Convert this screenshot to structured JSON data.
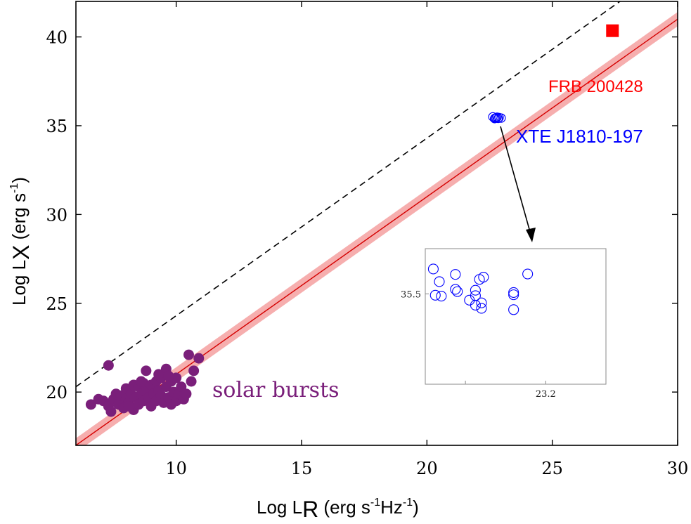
{
  "chart_data": {
    "type": "scatter",
    "xlabel": "Log L",
    "xlabel_sub": "R",
    "xlabel_units": " (erg s",
    "xlabel_exp1": "-1",
    "xlabel_mid": "Hz",
    "xlabel_exp2": "-1",
    "xlabel_end": ")",
    "ylabel": "Log L",
    "ylabel_sub": "X",
    "ylabel_units": " (erg s",
    "ylabel_exp": "-1",
    "ylabel_end": ")",
    "xlim": [
      6,
      30
    ],
    "ylim": [
      17,
      42
    ],
    "x_ticks": [
      10,
      15,
      20,
      25,
      30
    ],
    "x_tick_labels": [
      "10",
      "15",
      "20",
      "25",
      "30"
    ],
    "y_ticks": [
      20,
      25,
      30,
      35,
      40
    ],
    "y_tick_labels": [
      "20",
      "25",
      "30",
      "35",
      "40"
    ],
    "fit_line": {
      "slope": 1.0,
      "intercept": 11.0,
      "band_halfwidth": 0.4,
      "color": "#d40000",
      "band_color": "#f4a0a0"
    },
    "reference_line": {
      "slope": 1.0,
      "intercept": 14.3,
      "style": "dashed",
      "color": "#000000"
    },
    "annotations": {
      "frb": "FRB 200428",
      "xte": "XTE J1810-197",
      "solar": "solar bursts"
    },
    "colors": {
      "solar": "#7a1f7a",
      "xte": "#0000ff",
      "frb": "#ff0000"
    },
    "series": [
      {
        "name": "solar bursts",
        "marker": "filled-circle",
        "points": [
          [
            6.6,
            19.3
          ],
          [
            6.9,
            19.6
          ],
          [
            7.1,
            19.5
          ],
          [
            7.3,
            19.2
          ],
          [
            7.3,
            21.5
          ],
          [
            7.4,
            18.9
          ],
          [
            7.5,
            19.6
          ],
          [
            7.6,
            19.9
          ],
          [
            7.7,
            19.3
          ],
          [
            7.8,
            19.8
          ],
          [
            7.9,
            19.1
          ],
          [
            8.0,
            19.6
          ],
          [
            8.0,
            20.2
          ],
          [
            8.1,
            19.4
          ],
          [
            8.2,
            19.9
          ],
          [
            8.3,
            20.4
          ],
          [
            8.3,
            19.0
          ],
          [
            8.4,
            19.7
          ],
          [
            8.5,
            20.3
          ],
          [
            8.5,
            19.3
          ],
          [
            8.6,
            19.9
          ],
          [
            8.7,
            20.5
          ],
          [
            8.7,
            19.5
          ],
          [
            8.8,
            20.0
          ],
          [
            8.8,
            21.2
          ],
          [
            8.9,
            19.7
          ],
          [
            9.0,
            20.4
          ],
          [
            9.0,
            19.2
          ],
          [
            9.1,
            19.9
          ],
          [
            9.2,
            20.6
          ],
          [
            9.2,
            19.5
          ],
          [
            9.3,
            20.1
          ],
          [
            9.4,
            19.8
          ],
          [
            9.4,
            20.8
          ],
          [
            9.5,
            19.4
          ],
          [
            9.6,
            20.3
          ],
          [
            9.6,
            21.3
          ],
          [
            9.7,
            19.7
          ],
          [
            9.8,
            20.6
          ],
          [
            9.8,
            19.3
          ],
          [
            9.9,
            20.0
          ],
          [
            10.0,
            20.8
          ],
          [
            10.0,
            19.5
          ],
          [
            10.1,
            19.9
          ],
          [
            10.2,
            20.3
          ],
          [
            10.3,
            19.6
          ],
          [
            10.4,
            19.9
          ],
          [
            10.5,
            22.1
          ],
          [
            10.6,
            20.6
          ],
          [
            10.7,
            21.2
          ],
          [
            10.9,
            21.9
          ],
          [
            8.6,
            20.6
          ],
          [
            9.3,
            21.0
          ],
          [
            8.1,
            19.2
          ],
          [
            9.7,
            20.9
          ]
        ]
      },
      {
        "name": "XTE J1810-197",
        "marker": "open-circle",
        "points": [
          [
            22.63,
            35.5
          ],
          [
            22.72,
            35.43
          ],
          [
            22.8,
            35.48
          ],
          [
            22.88,
            35.46
          ],
          [
            22.96,
            35.43
          ],
          [
            22.7,
            35.4
          ],
          [
            22.84,
            35.41
          ],
          [
            22.76,
            35.44
          ]
        ]
      },
      {
        "name": "FRB 200428",
        "marker": "filled-square",
        "points": [
          [
            27.4,
            40.35
          ]
        ]
      }
    ],
    "inset": {
      "x_tick_labels": [
        "23.2"
      ],
      "y_tick_labels": [
        "35.5"
      ],
      "xlim": [
        22.9,
        23.35
      ],
      "ylim": [
        35.3,
        35.6
      ],
      "x_ticks": [
        23.0,
        23.2
      ],
      "y_ticks": [
        35.5
      ],
      "points": [
        [
          22.92,
          35.555
        ],
        [
          22.94,
          35.495
        ],
        [
          22.935,
          35.527
        ],
        [
          22.925,
          35.497
        ],
        [
          22.975,
          35.543
        ],
        [
          22.975,
          35.51
        ],
        [
          22.98,
          35.505
        ],
        [
          23.01,
          35.486
        ],
        [
          23.025,
          35.508
        ],
        [
          23.025,
          35.496
        ],
        [
          23.035,
          35.532
        ],
        [
          23.045,
          35.537
        ],
        [
          23.025,
          35.475
        ],
        [
          23.04,
          35.48
        ],
        [
          23.04,
          35.468
        ],
        [
          23.12,
          35.498
        ],
        [
          23.12,
          35.503
        ],
        [
          23.12,
          35.465
        ],
        [
          23.155,
          35.544
        ]
      ]
    }
  }
}
